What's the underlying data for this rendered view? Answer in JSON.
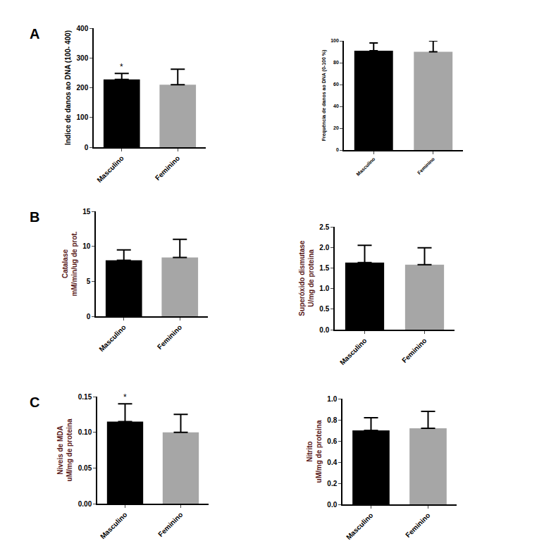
{
  "chart_data": [
    {
      "type": "bar",
      "panel": "A",
      "categories": [
        "Masculino",
        "Feminino"
      ],
      "values": [
        228,
        210
      ],
      "errors": [
        20,
        52
      ],
      "colors": [
        "#000000",
        "#a6a6a6"
      ],
      "y_label": "Indice de danos ao DNA (100- 400)",
      "ylim": [
        0,
        400
      ],
      "yticks": [
        0,
        100,
        200,
        300,
        400
      ],
      "annotations": [
        {
          "category": "Masculino",
          "text": "*"
        }
      ]
    },
    {
      "type": "bar",
      "categories": [
        "Masculino",
        "Feminino"
      ],
      "values": [
        91,
        90
      ],
      "errors": [
        7,
        10
      ],
      "colors": [
        "#000000",
        "#a6a6a6"
      ],
      "y_label": "Frequência de danos ao DNA (0-100 %)",
      "ylim": [
        0,
        100
      ],
      "yticks": [
        0,
        20,
        40,
        60,
        80,
        100
      ]
    },
    {
      "type": "bar",
      "panel": "B",
      "categories": [
        "Masculino",
        "Feminino"
      ],
      "values": [
        8.0,
        8.4
      ],
      "errors": [
        1.5,
        2.6
      ],
      "colors": [
        "#000000",
        "#a6a6a6"
      ],
      "y_label": "Catalase\nmM/min/ug de prot.",
      "ylim": [
        0,
        15
      ],
      "yticks": [
        0,
        5,
        10,
        15
      ]
    },
    {
      "type": "bar",
      "categories": [
        "Masculino",
        "Feminino"
      ],
      "values": [
        1.63,
        1.58
      ],
      "errors": [
        0.42,
        0.41
      ],
      "colors": [
        "#000000",
        "#a6a6a6"
      ],
      "y_label": "Superóxido dismutase\nU/mg de proteina",
      "ylim": [
        0,
        2.5
      ],
      "yticks": [
        {
          "value": 0,
          "label": "0.0"
        },
        0.5,
        {
          "value": 1,
          "label": "1.0"
        },
        1.5,
        {
          "value": 2,
          "label": "2.0"
        },
        2.5
      ]
    },
    {
      "type": "bar",
      "panel": "C",
      "categories": [
        "Masculino",
        "Feminino"
      ],
      "values": [
        0.115,
        0.1
      ],
      "errors": [
        0.025,
        0.025
      ],
      "colors": [
        "#000000",
        "#a6a6a6"
      ],
      "y_label": "Niveis de MDA\nuM/mg de proteina",
      "ylim": [
        0,
        0.15
      ],
      "yticks": [
        {
          "value": 0,
          "label": "0.00"
        },
        0.05,
        {
          "value": 0.1,
          "label": "0.10"
        },
        0.15
      ],
      "annotations": [
        {
          "category": "Masculino",
          "text": "*"
        }
      ]
    },
    {
      "type": "bar",
      "categories": [
        "Masculino",
        "Feminino"
      ],
      "values": [
        0.7,
        0.72
      ],
      "errors": [
        0.12,
        0.16
      ],
      "colors": [
        "#000000",
        "#a6a6a6"
      ],
      "y_label": "Nitrito\nuM/mg de proteina",
      "ylim": [
        0,
        1.0
      ],
      "yticks": [
        {
          "value": 0,
          "label": "0.0"
        },
        {
          "value": 0.2,
          "label": "0.2"
        },
        {
          "value": 0.4,
          "label": "0.4"
        },
        {
          "value": 0.6,
          "label": "0.6"
        },
        {
          "value": 0.8,
          "label": "0.8"
        },
        {
          "value": 1,
          "label": "1.0"
        }
      ]
    }
  ]
}
